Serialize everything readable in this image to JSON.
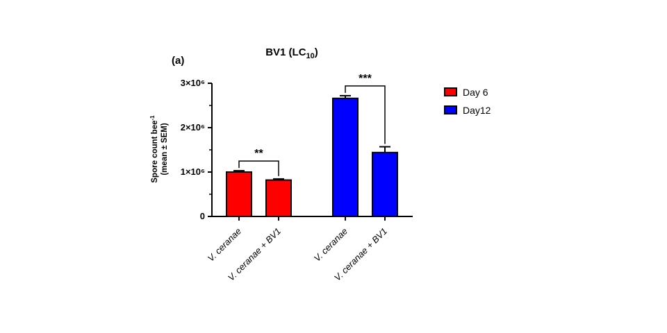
{
  "panel_label": "(a)",
  "chart_data": {
    "type": "bar",
    "title": "BV1 (LC",
    "title_sub": "10",
    "title_suffix": ")",
    "ylabel_line1": "Spore count bee",
    "ylabel_sup": "-1",
    "ylabel_line2": "(mean ± SEM)",
    "ylim": [
      0,
      3000000
    ],
    "yticks": [
      {
        "value": 0,
        "label": "0"
      },
      {
        "value": 1000000,
        "label": "1×10⁶"
      },
      {
        "value": 2000000,
        "label": "2×10⁶"
      },
      {
        "value": 3000000,
        "label": "3×10⁶"
      }
    ],
    "grid": false,
    "legend_position": "right",
    "series": [
      {
        "name": "Day 6",
        "color": "#ff0000",
        "categories": [
          "V. ceranae",
          "V. ceranae + BV1"
        ],
        "values": [
          1000000,
          820000
        ],
        "sem": [
          30000,
          25000
        ]
      },
      {
        "name": "Day12",
        "color": "#0000ff",
        "categories": [
          "V. ceranae",
          "V. ceranae + BV1"
        ],
        "values": [
          2660000,
          1440000
        ],
        "sem": [
          60000,
          130000
        ]
      }
    ],
    "annotations": [
      {
        "series": 0,
        "label": "**"
      },
      {
        "series": 1,
        "label": "***"
      }
    ]
  }
}
